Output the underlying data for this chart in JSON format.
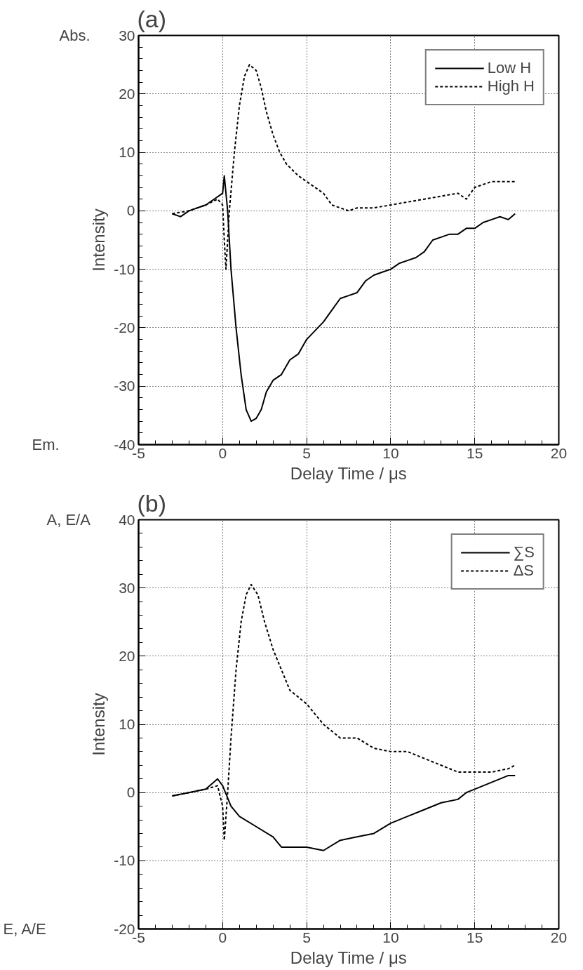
{
  "chart_data": [
    {
      "type": "line",
      "title": "(a)",
      "xlabel": "Delay Time / μs",
      "ylabel": "Intensity",
      "annotations": [
        "Abs.",
        "Em."
      ],
      "xlim": [
        -5,
        20
      ],
      "ylim": [
        -40,
        30
      ],
      "xticks": [
        -5,
        0,
        5,
        10,
        15,
        20
      ],
      "yticks": [
        -40,
        -30,
        -20,
        -10,
        0,
        10,
        20,
        30
      ],
      "grid": true,
      "legend": "top right",
      "series": [
        {
          "name": "Low H",
          "color": "#000000",
          "line_style": "solid",
          "x": [
            -3,
            -2.5,
            -2,
            -1,
            -0.5,
            0,
            0.1,
            0.3,
            0.5,
            0.8,
            1.1,
            1.4,
            1.7,
            2.0,
            2.3,
            2.6,
            3,
            3.5,
            4,
            4.5,
            5,
            5.5,
            6,
            6.5,
            7,
            7.5,
            8,
            8.5,
            9,
            9.5,
            10,
            10.5,
            11,
            11.5,
            12,
            12.5,
            13,
            13.5,
            14,
            14.5,
            15,
            15.5,
            16,
            16.5,
            17,
            17.4
          ],
          "values": [
            -0.5,
            -1,
            0,
            1,
            2,
            3,
            6,
            0,
            -10,
            -20,
            -28,
            -34,
            -36,
            -35.5,
            -34,
            -31,
            -29,
            -28,
            -25.5,
            -24.5,
            -22,
            -20.5,
            -19,
            -17,
            -15,
            -14.5,
            -14,
            -12,
            -11,
            -10.5,
            -10,
            -9,
            -8.5,
            -8,
            -7,
            -5,
            -4.5,
            -4,
            -4,
            -3,
            -3,
            -2,
            -1.5,
            -1,
            -1.5,
            -0.5
          ]
        },
        {
          "name": "High H",
          "color": "#000000",
          "line_style": "dashed",
          "x": [
            -3,
            -2,
            -1,
            -0.3,
            0,
            0.1,
            0.2,
            0.4,
            0.7,
            1.0,
            1.3,
            1.6,
            2,
            2.3,
            2.6,
            3,
            3.4,
            3.8,
            4.5,
            5,
            5.5,
            6,
            6.5,
            7,
            7.5,
            8,
            9,
            10,
            11,
            12,
            13,
            14,
            14.5,
            15,
            16,
            17,
            17.4
          ],
          "values": [
            -0.5,
            0,
            1,
            2,
            1,
            -5,
            -10,
            0,
            10,
            18,
            23,
            25,
            24,
            21,
            17,
            13,
            10,
            8,
            6,
            5,
            4,
            3,
            1,
            0.5,
            0,
            0.5,
            0.5,
            1,
            1.5,
            2,
            2.5,
            3,
            2,
            4,
            5,
            5,
            5
          ]
        }
      ]
    },
    {
      "type": "line",
      "title": "(b)",
      "xlabel": "Delay Time / μs",
      "ylabel": "Intensity",
      "annotations": [
        "A, E/A",
        "E, A/E"
      ],
      "xlim": [
        -5,
        20
      ],
      "ylim": [
        -20,
        40
      ],
      "xticks": [
        -5,
        0,
        5,
        10,
        15,
        20
      ],
      "yticks": [
        -20,
        -10,
        0,
        10,
        20,
        30,
        40
      ],
      "grid": true,
      "legend": "top right",
      "series": [
        {
          "name": "∑S",
          "color": "#000000",
          "line_style": "solid",
          "x": [
            -3,
            -2,
            -1,
            -0.3,
            0,
            0.5,
            1,
            2,
            3,
            3.5,
            4,
            5,
            6,
            7,
            8,
            9,
            10,
            11,
            12,
            13,
            14,
            14.5,
            15,
            16,
            17,
            17.4
          ],
          "values": [
            -0.5,
            0,
            0.5,
            2,
            1,
            -2,
            -3.5,
            -5,
            -6.5,
            -8,
            -8,
            -8,
            -8.5,
            -7,
            -6.5,
            -6,
            -4.5,
            -3.5,
            -2.5,
            -1.5,
            -1,
            0,
            0.5,
            1.5,
            2.5,
            2.5
          ]
        },
        {
          "name": "ΔS",
          "color": "#000000",
          "line_style": "dashed",
          "x": [
            -3,
            -2,
            -1,
            -0.3,
            0,
            0.1,
            0.3,
            0.5,
            0.8,
            1.1,
            1.4,
            1.7,
            2.1,
            2.5,
            3,
            3.5,
            4,
            5,
            6,
            7,
            8,
            9,
            10,
            11,
            12,
            13,
            14,
            15,
            16,
            17,
            17.4
          ],
          "values": [
            -0.5,
            0,
            0.5,
            1,
            -2,
            -7,
            0,
            8,
            18,
            25,
            29,
            30.5,
            29,
            25,
            21,
            18,
            15,
            13,
            10,
            8,
            8,
            6.5,
            6,
            6,
            5,
            4,
            3,
            3,
            3,
            3.5,
            4
          ]
        }
      ]
    }
  ]
}
